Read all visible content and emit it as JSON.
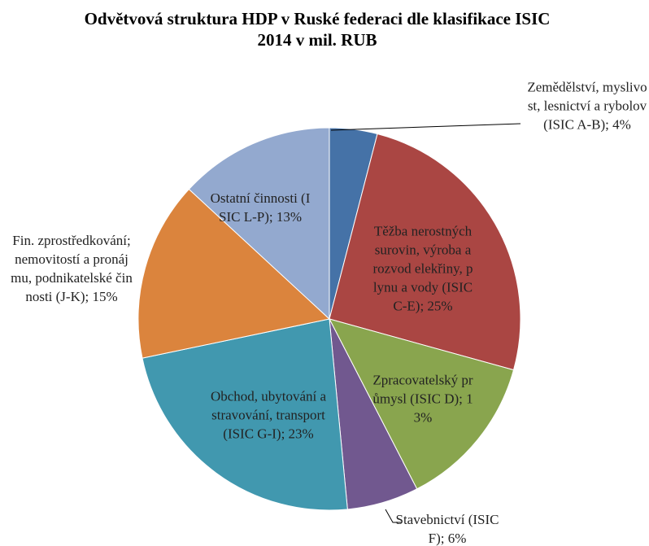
{
  "chart_data": {
    "type": "pie",
    "title": "Odvětvová struktura HDP v Ruské federaci dle klasifikace ISIC 2014 v mil. RUB",
    "values": [
      4,
      25,
      13,
      6,
      23,
      15,
      13
    ],
    "value_labels": [
      "Zemědělství, myslivost, lesnictví a rybolov (ISIC A-B); 4%",
      "Těžba nerostných surovin, výroba a rozvod elekřiny, plynu a vody (ISIC C-E); 25%",
      "Zpracovatelský průmysl (ISIC D); 13%",
      "Stavebnictví (ISIC F); 6%",
      "Obchod, ubytování a stravování, transport (ISIC G-I); 23%",
      "Fin. zprostředkování; nemovitostí a pronájmu, podnikatelské činnosti (J-K); 15%",
      "Ostatní činnosti (ISIC L-P); 13%"
    ],
    "colors": [
      "#4572a7",
      "#aa4643",
      "#89a54e",
      "#71588f",
      "#4198af",
      "#db843d",
      "#93a9cf"
    ]
  }
}
